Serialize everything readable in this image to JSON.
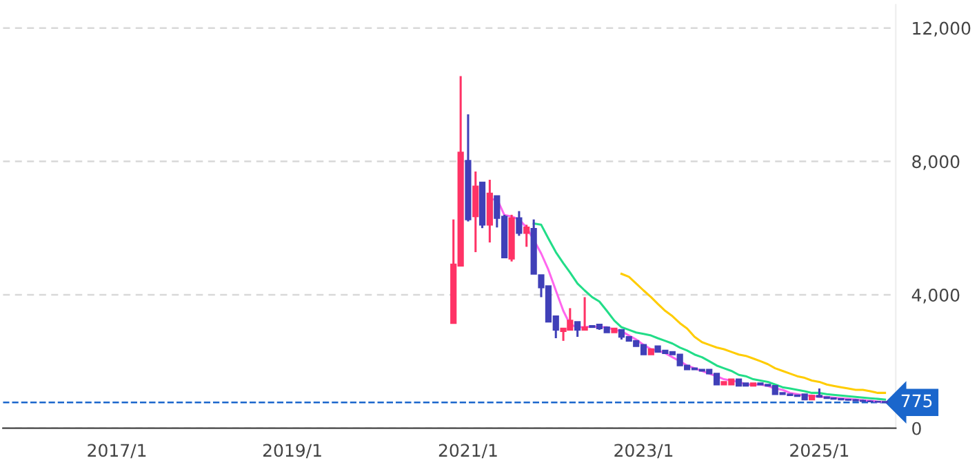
{
  "chart_data": {
    "type": "candlestick",
    "x": [
      "2020-11",
      "2020-12",
      "2021-01",
      "2021-02",
      "2021-03",
      "2021-04",
      "2021-05",
      "2021-06",
      "2021-07",
      "2021-08",
      "2021-09",
      "2021-10",
      "2021-11",
      "2021-12",
      "2022-01",
      "2022-02",
      "2022-03",
      "2022-04",
      "2022-05",
      "2022-06",
      "2022-07",
      "2022-08",
      "2022-09",
      "2022-10",
      "2022-11",
      "2022-12",
      "2023-01",
      "2023-02",
      "2023-03",
      "2023-04",
      "2023-05",
      "2023-06",
      "2023-07",
      "2023-08",
      "2023-09",
      "2023-10",
      "2023-11",
      "2023-12",
      "2024-01",
      "2024-02",
      "2024-03",
      "2024-04",
      "2024-05",
      "2024-06",
      "2024-07",
      "2024-08",
      "2024-09",
      "2024-10",
      "2024-11",
      "2024-12",
      "2025-01",
      "2025-02",
      "2025-03",
      "2025-04",
      "2025-05",
      "2025-06",
      "2025-07",
      "2025-08",
      "2025-09",
      "2025-10"
    ],
    "ohlc": [
      [
        3150,
        6260,
        3150,
        4910
      ],
      [
        4870,
        10560,
        4870,
        8270
      ],
      [
        8020,
        9410,
        6200,
        6260
      ],
      [
        6350,
        7700,
        5280,
        7250
      ],
      [
        7370,
        7370,
        6000,
        6100
      ],
      [
        6100,
        7450,
        5570,
        7040
      ],
      [
        6960,
        6960,
        6020,
        6300
      ],
      [
        6350,
        6400,
        5120,
        5120
      ],
      [
        5080,
        6400,
        5000,
        6300
      ],
      [
        6300,
        6510,
        5770,
        5850
      ],
      [
        5850,
        6100,
        5440,
        6020
      ],
      [
        5980,
        6260,
        4630,
        4630
      ],
      [
        4590,
        4590,
        3930,
        4220
      ],
      [
        4260,
        4260,
        3190,
        3190
      ],
      [
        3360,
        3360,
        2700,
        2950
      ],
      [
        2910,
        3000,
        2620,
        2990
      ],
      [
        2950,
        3600,
        2950,
        3230
      ],
      [
        3190,
        3190,
        2740,
        2950
      ],
      [
        2950,
        3930,
        2950,
        3030
      ],
      [
        3070,
        3070,
        3030,
        3030
      ],
      [
        3110,
        3110,
        2950,
        2990
      ],
      [
        3030,
        3030,
        2870,
        2870
      ],
      [
        2870,
        2990,
        2870,
        2990
      ],
      [
        2950,
        2950,
        2660,
        2740
      ],
      [
        2740,
        2740,
        2620,
        2620
      ],
      [
        2620,
        2620,
        2460,
        2460
      ],
      [
        2500,
        2500,
        2210,
        2210
      ],
      [
        2210,
        2370,
        2210,
        2370
      ],
      [
        2460,
        2460,
        2290,
        2290
      ],
      [
        2330,
        2330,
        2250,
        2250
      ],
      [
        2290,
        2290,
        2210,
        2210
      ],
      [
        2210,
        2210,
        1880,
        1880
      ],
      [
        1880,
        1880,
        1760,
        1760
      ],
      [
        1800,
        1800,
        1760,
        1760
      ],
      [
        1760,
        1760,
        1720,
        1720
      ],
      [
        1760,
        1760,
        1640,
        1640
      ],
      [
        1640,
        1640,
        1310,
        1310
      ],
      [
        1310,
        1390,
        1310,
        1390
      ],
      [
        1310,
        1470,
        1310,
        1470
      ],
      [
        1470,
        1470,
        1270,
        1270
      ],
      [
        1350,
        1350,
        1270,
        1270
      ],
      [
        1270,
        1350,
        1270,
        1350
      ],
      [
        1350,
        1350,
        1310,
        1310
      ],
      [
        1310,
        1310,
        1270,
        1270
      ],
      [
        1270,
        1270,
        1020,
        1020
      ],
      [
        1060,
        1060,
        1020,
        1020
      ],
      [
        1020,
        1020,
        990,
        990
      ],
      [
        990,
        990,
        960,
        960
      ],
      [
        1020,
        1020,
        860,
        860
      ],
      [
        860,
        980,
        860,
        980
      ],
      [
        980,
        1190,
        940,
        940
      ],
      [
        930,
        930,
        900,
        900
      ],
      [
        900,
        920,
        870,
        880
      ],
      [
        880,
        900,
        850,
        860
      ],
      [
        860,
        880,
        830,
        850
      ],
      [
        850,
        870,
        820,
        830
      ],
      [
        830,
        850,
        800,
        810
      ],
      [
        810,
        830,
        790,
        800
      ],
      [
        800,
        810,
        780,
        790
      ],
      [
        790,
        800,
        770,
        775
      ]
    ],
    "colors": [
      "#ff3366",
      "#ff3366",
      "#4040b8",
      "#ff3366",
      "#4040b8",
      "#ff3366",
      "#4040b8",
      "#4040b8",
      "#ff3366",
      "#4040b8",
      "#ff3366",
      "#4040b8",
      "#4040b8",
      "#4040b8",
      "#4040b8",
      "#ff3366",
      "#ff3366",
      "#4040b8",
      "#ff3366",
      "#4040b8",
      "#4040b8",
      "#4040b8",
      "#ff3366",
      "#4040b8",
      "#4040b8",
      "#4040b8",
      "#4040b8",
      "#ff3366",
      "#4040b8",
      "#4040b8",
      "#4040b8",
      "#4040b8",
      "#4040b8",
      "#4040b8",
      "#4040b8",
      "#4040b8",
      "#4040b8",
      "#ff3366",
      "#ff3366",
      "#4040b8",
      "#4040b8",
      "#ff3366",
      "#4040b8",
      "#4040b8",
      "#4040b8",
      "#4040b8",
      "#4040b8",
      "#4040b8",
      "#4040b8",
      "#ff3366",
      "#4040b8",
      "#4040b8",
      "#4040b8",
      "#4040b8",
      "#4040b8",
      "#4040b8",
      "#4040b8",
      "#4040b8",
      "#4040b8",
      "#4040b8"
    ],
    "series": [
      {
        "type": "line",
        "color": "#ff66ee",
        "x": [
          "2021-04",
          "2021-05",
          "2021-06",
          "2021-07",
          "2021-08",
          "2021-09",
          "2021-10",
          "2021-11",
          "2021-12",
          "2022-01",
          "2022-02",
          "2022-03",
          "2022-04",
          "2022-05",
          "2022-06",
          "2022-07",
          "2022-08",
          "2022-09",
          "2022-10",
          "2022-11",
          "2022-12",
          "2023-01",
          "2023-02",
          "2023-03",
          "2023-04",
          "2023-05",
          "2023-06",
          "2023-07",
          "2023-08",
          "2023-09",
          "2023-10",
          "2023-11",
          "2023-12",
          "2024-01",
          "2024-02",
          "2024-03",
          "2024-04",
          "2024-05",
          "2024-06",
          "2024-07",
          "2024-08",
          "2024-09",
          "2024-10",
          "2024-11",
          "2024-12",
          "2025-01",
          "2025-02",
          "2025-03",
          "2025-04",
          "2025-05",
          "2025-06",
          "2025-07",
          "2025-08",
          "2025-09",
          "2025-10"
        ],
        "values": [
          6840,
          6880,
          6390,
          6350,
          6260,
          6020,
          5650,
          5240,
          4750,
          4130,
          3520,
          3110,
          3030,
          3030,
          3050,
          3030,
          3030,
          2950,
          2910,
          2780,
          2660,
          2500,
          2370,
          2330,
          2250,
          2130,
          2010,
          1880,
          1800,
          1720,
          1640,
          1560,
          1470,
          1430,
          1390,
          1310,
          1310,
          1310,
          1270,
          1190,
          1150,
          1060,
          1020,
          980,
          980,
          940,
          940,
          920,
          900,
          880,
          860,
          840,
          820,
          800,
          790
        ]
      },
      {
        "type": "line",
        "color": "#22dd88",
        "x": [
          "2021-10",
          "2021-11",
          "2021-12",
          "2022-01",
          "2022-02",
          "2022-03",
          "2022-04",
          "2022-05",
          "2022-06",
          "2022-07",
          "2022-08",
          "2022-09",
          "2022-10",
          "2022-11",
          "2022-12",
          "2023-01",
          "2023-02",
          "2023-03",
          "2023-04",
          "2023-05",
          "2023-06",
          "2023-07",
          "2023-08",
          "2023-09",
          "2023-10",
          "2023-11",
          "2023-12",
          "2024-01",
          "2024-02",
          "2024-03",
          "2024-04",
          "2024-05",
          "2024-06",
          "2024-07",
          "2024-08",
          "2024-09",
          "2024-10",
          "2024-11",
          "2024-12",
          "2025-01",
          "2025-02",
          "2025-03",
          "2025-04",
          "2025-05",
          "2025-06",
          "2025-07",
          "2025-08",
          "2025-09",
          "2025-10"
        ],
        "values": [
          6140,
          6100,
          5690,
          5280,
          4950,
          4670,
          4340,
          4130,
          3930,
          3800,
          3520,
          3230,
          3030,
          2950,
          2870,
          2830,
          2780,
          2700,
          2620,
          2540,
          2420,
          2330,
          2210,
          2130,
          2010,
          1880,
          1800,
          1720,
          1600,
          1560,
          1470,
          1430,
          1390,
          1310,
          1230,
          1190,
          1150,
          1110,
          1060,
          1060,
          1020,
          1000,
          980,
          960,
          940,
          920,
          900,
          880,
          860
        ]
      },
      {
        "type": "line",
        "color": "#ffcc00",
        "x": [
          "2022-10",
          "2022-11",
          "2022-12",
          "2023-01",
          "2023-02",
          "2023-03",
          "2023-04",
          "2023-05",
          "2023-06",
          "2023-07",
          "2023-08",
          "2023-09",
          "2023-10",
          "2023-11",
          "2023-12",
          "2024-01",
          "2024-02",
          "2024-03",
          "2024-04",
          "2024-05",
          "2024-06",
          "2024-07",
          "2024-08",
          "2024-09",
          "2024-10",
          "2024-11",
          "2024-12",
          "2025-01",
          "2025-02",
          "2025-03",
          "2025-04",
          "2025-05",
          "2025-06",
          "2025-07",
          "2025-08",
          "2025-09",
          "2025-10"
        ],
        "values": [
          4630,
          4540,
          4340,
          4130,
          3930,
          3730,
          3520,
          3360,
          3150,
          2990,
          2740,
          2580,
          2500,
          2420,
          2370,
          2290,
          2210,
          2170,
          2090,
          2010,
          1920,
          1800,
          1720,
          1640,
          1560,
          1510,
          1430,
          1390,
          1310,
          1270,
          1230,
          1190,
          1150,
          1150,
          1110,
          1060,
          1060
        ]
      }
    ],
    "xlim": [
      "2015-09-15",
      "2025-11-15"
    ],
    "xticks": [
      {
        "value": "2017-01",
        "label": "2017/1"
      },
      {
        "value": "2019-01",
        "label": "2019/1"
      },
      {
        "value": "2021-01",
        "label": "2021/1"
      },
      {
        "value": "2023-01",
        "label": "2023/1"
      },
      {
        "value": "2025-01",
        "label": "2025/1"
      }
    ],
    "ylim": [
      0,
      12700
    ],
    "yticks": [
      0,
      {
        "value": 4000,
        "label": "4,000"
      },
      {
        "value": 8000,
        "label": "8,000"
      },
      {
        "value": 12000,
        "label": "12,000"
      }
    ],
    "grid": "y",
    "ref_lines": [
      {
        "axis": "y",
        "value": 775,
        "label": "775",
        "color": "#1a66cc",
        "line_style": "dashed"
      }
    ]
  }
}
